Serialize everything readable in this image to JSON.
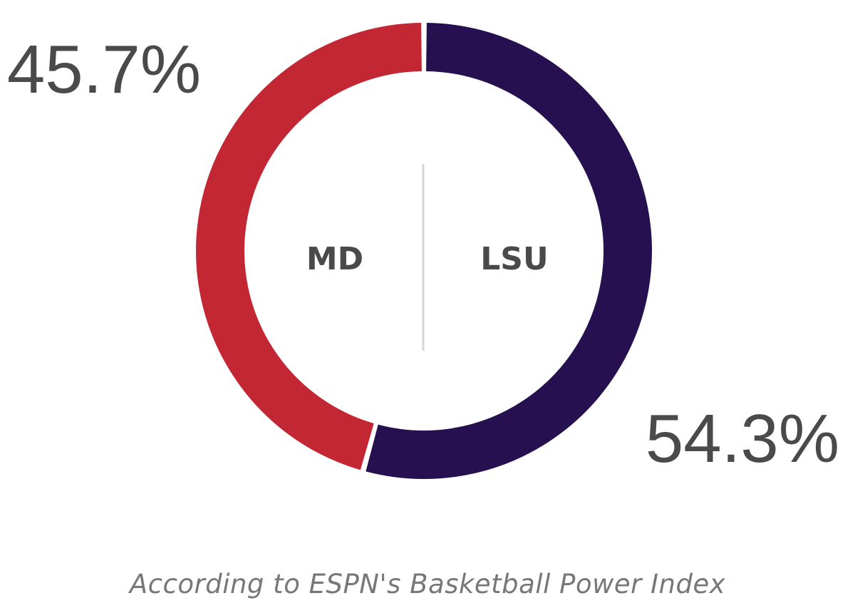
{
  "chart_data": {
    "type": "pie",
    "style": "donut",
    "slices": [
      {
        "team": "MD",
        "label": "45.7%",
        "value": 45.7,
        "color": "#c32734"
      },
      {
        "team": "LSU",
        "label": "54.3%",
        "value": 54.3,
        "color": "#26104f"
      }
    ],
    "note": "According to ESPN's Basketball Power Index"
  }
}
